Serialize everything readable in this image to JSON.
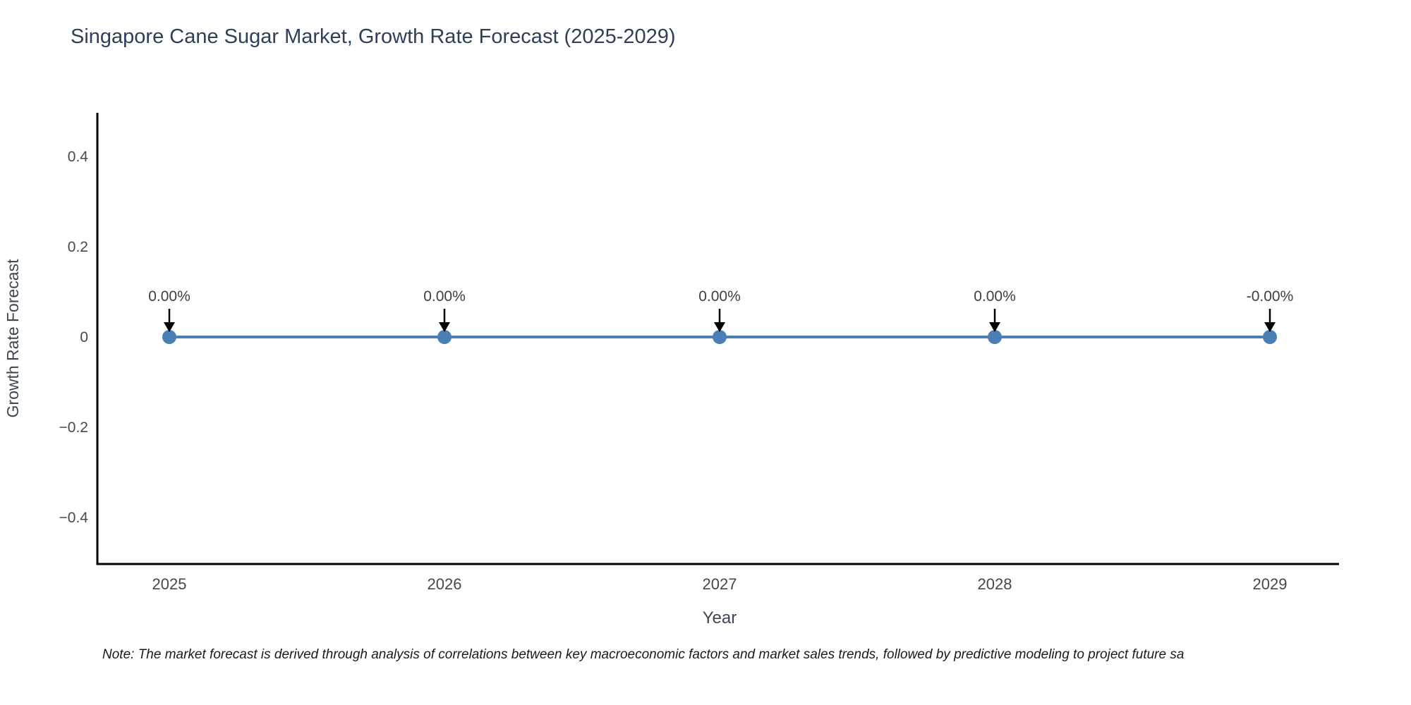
{
  "page": {
    "background": "#ffffff"
  },
  "note": {
    "text": "Note: The market forecast is derived through analysis of correlations between key macroeconomic factors and market sales trends, followed by predictive modeling to project future sa"
  },
  "chart_data": {
    "type": "line",
    "title": "Singapore Cane Sugar Market, Growth Rate Forecast (2025-2029)",
    "xlabel": "Year",
    "ylabel": "Growth Rate Forecast",
    "categories": [
      "2025",
      "2026",
      "2027",
      "2028",
      "2029"
    ],
    "series": [
      {
        "name": "Growth Rate Forecast",
        "values": [
          0,
          0,
          0,
          0,
          0
        ],
        "point_labels": [
          "0.00%",
          "0.00%",
          "0.00%",
          "0.00%",
          "-0.00%"
        ]
      }
    ],
    "ylim": [
      -0.5,
      0.5
    ],
    "yticks": [
      {
        "value": 0.4,
        "label": "0.4"
      },
      {
        "value": 0.2,
        "label": "0.2"
      },
      {
        "value": 0,
        "label": "0"
      },
      {
        "value": -0.2,
        "label": "−0.2"
      },
      {
        "value": -0.4,
        "label": "−0.4"
      }
    ],
    "grid": false,
    "legend": "none",
    "colors": {
      "line": "#4a7fb5",
      "marker": "#4a7fb5",
      "axis": "#000000",
      "tick_label": "#44484f",
      "axis_label": "#3d4650",
      "annotation_text": "#3f3f3f",
      "annotation_arrow": "#000000",
      "title": "#2e4058"
    }
  }
}
